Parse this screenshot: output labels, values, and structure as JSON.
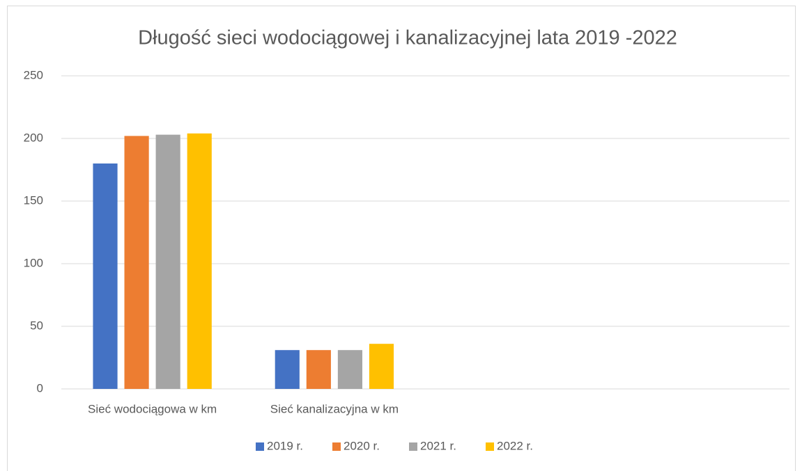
{
  "chart_data": {
    "type": "bar",
    "title": "Długość sieci wodociągowej i kanalizacyjnej lata 2019 -2022",
    "categories": [
      "Sieć wodociągowa w km",
      "Sieć kanalizacyjna w km",
      null,
      null
    ],
    "series": [
      {
        "name": "2019 r.",
        "color": "#4472c4",
        "values": [
          180,
          31,
          null,
          null
        ]
      },
      {
        "name": "2020 r.",
        "color": "#ed7d31",
        "values": [
          202,
          31,
          null,
          null
        ]
      },
      {
        "name": "2021 r.",
        "color": "#a5a5a5",
        "values": [
          203,
          31,
          null,
          null
        ]
      },
      {
        "name": "2022 r.",
        "color": "#ffc000",
        "values": [
          204,
          36,
          null,
          null
        ]
      }
    ],
    "ylim": [
      0,
      250
    ],
    "yticks": [
      0,
      50,
      100,
      150,
      200,
      250
    ],
    "grid": true,
    "legend": "bottom"
  }
}
